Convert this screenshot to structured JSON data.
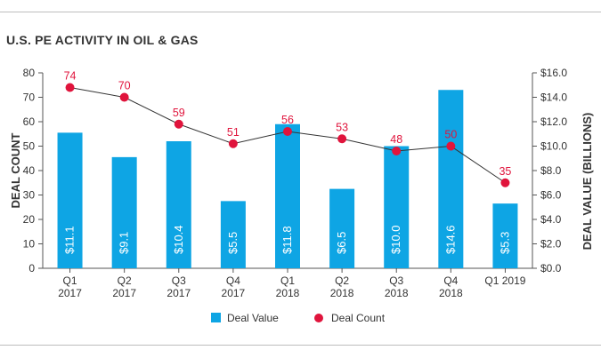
{
  "title": "U.S. PE ACTIVITY IN OIL & GAS",
  "chart_data": {
    "type": "bar+line",
    "title": "U.S. PE ACTIVITY IN OIL & GAS",
    "categories": [
      [
        "Q1",
        "2017"
      ],
      [
        "Q2",
        "2017"
      ],
      [
        "Q3",
        "2017"
      ],
      [
        "Q4",
        "2017"
      ],
      [
        "Q1",
        "2018"
      ],
      [
        "Q2",
        "2018"
      ],
      [
        "Q3",
        "2018"
      ],
      [
        "Q4",
        "2018"
      ],
      [
        "Q1 2019"
      ]
    ],
    "left_axis": {
      "label": "DEAL COUNT",
      "ylim": [
        0,
        80
      ],
      "ticks": [
        "0",
        "10",
        "20",
        "30",
        "40",
        "50",
        "60",
        "70",
        "80"
      ]
    },
    "right_axis": {
      "label": "DEAL VALUE (BILLIONS)",
      "ylim": [
        0,
        16
      ],
      "ticks": [
        "$0.0",
        "$2.0",
        "$4.0",
        "$6.0",
        "$8.0",
        "$10.0",
        "$12.0",
        "$14.0",
        "$16.0"
      ]
    },
    "series": [
      {
        "name": "Deal Value",
        "kind": "bar",
        "axis": "right",
        "color": "#0ea5e4",
        "values": [
          11.1,
          9.1,
          10.4,
          5.5,
          11.8,
          6.5,
          10.0,
          14.6,
          5.3
        ],
        "labels": [
          "$11.1",
          "$9.1",
          "$10.4",
          "$5.5",
          "$11.8",
          "$6.5",
          "$10.0",
          "$14.6",
          "$5.3"
        ]
      },
      {
        "name": "Deal Count",
        "kind": "line",
        "axis": "left",
        "color": "#e0143c",
        "line_color": "#333333",
        "values": [
          74,
          70,
          59,
          51,
          56,
          53,
          48,
          50,
          35
        ],
        "labels": [
          "74",
          "70",
          "59",
          "51",
          "56",
          "53",
          "48",
          "50",
          "35"
        ]
      }
    ],
    "legend": {
      "position": "bottom-center",
      "entries": [
        "Deal Value",
        "Deal Count"
      ]
    }
  }
}
